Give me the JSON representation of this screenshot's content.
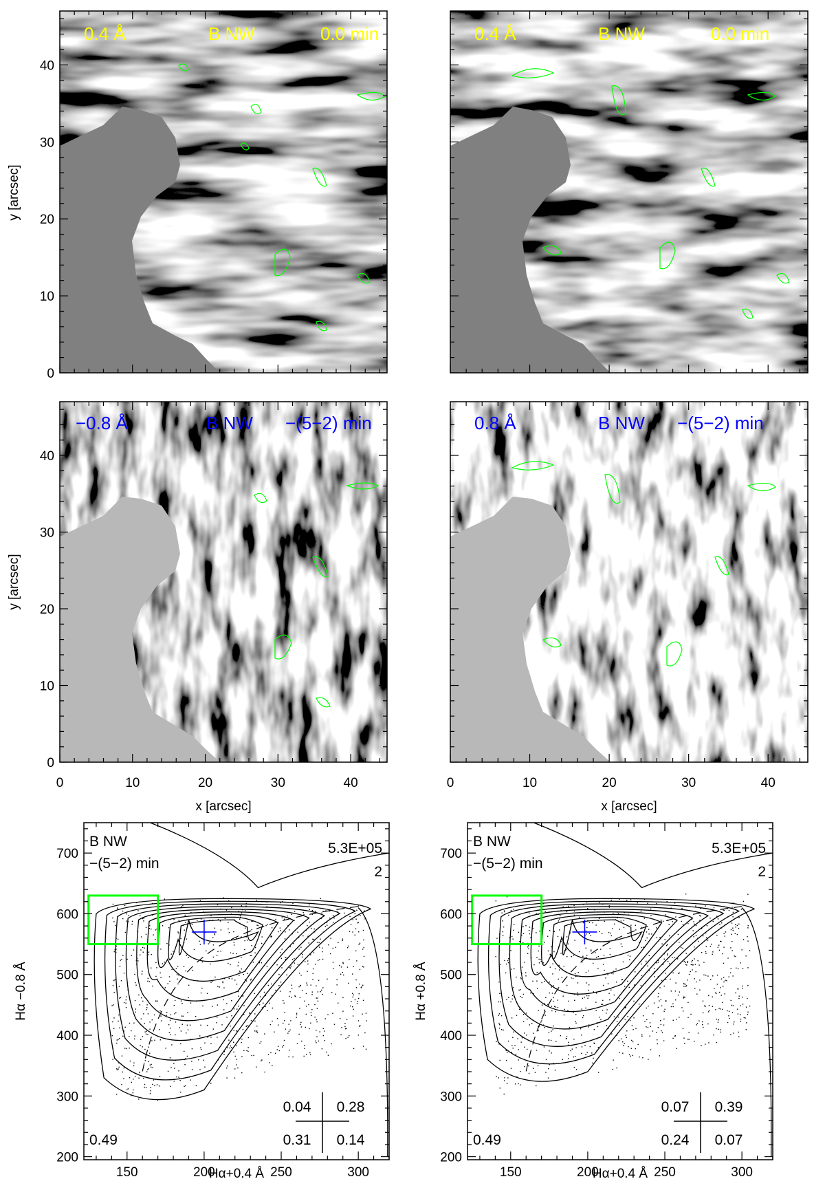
{
  "chart_data": [
    {
      "type": "heatmap",
      "panel": "a",
      "labels": {
        "wavelength": "0.4 Å",
        "region": "B  NW",
        "time": "0.0 min"
      },
      "label_color": "#ffff00",
      "colormap": "grayscale",
      "contour_colors": [
        "#00ff00",
        "#0000ff"
      ],
      "x_ticks": [
        0,
        10,
        20,
        30,
        40
      ],
      "y_ticks": [
        0,
        10,
        20,
        30,
        40
      ],
      "xlim": [
        0,
        45
      ],
      "ylim": [
        0,
        47
      ],
      "ylabel": "y  [arcsec]"
    },
    {
      "type": "heatmap",
      "panel": "b",
      "labels": {
        "wavelength": "0.4 Å",
        "region": "B  NW",
        "time": "0.0 min"
      },
      "label_color": "#ffff00",
      "colormap": "grayscale",
      "contour_colors": [
        "#00ff00",
        "#0000ff"
      ],
      "x_ticks": [
        0,
        10,
        20,
        30,
        40
      ],
      "y_ticks": [
        0,
        10,
        20,
        30,
        40
      ],
      "xlim": [
        0,
        45
      ],
      "ylim": [
        0,
        47
      ]
    },
    {
      "type": "heatmap",
      "panel": "c",
      "labels": {
        "wavelength": "−0.8 Å",
        "region": "B  NW",
        "time": "−(5−2) min"
      },
      "label_color": "#0000ff",
      "colormap": "grayscale",
      "contour_colors": [
        "#00ff00"
      ],
      "x_ticks": [
        0,
        10,
        20,
        30,
        40
      ],
      "y_ticks": [
        0,
        10,
        20,
        30,
        40
      ],
      "xlim": [
        0,
        45
      ],
      "ylim": [
        0,
        47
      ],
      "xlabel": "x  [arcsec]",
      "ylabel": "y  [arcsec]"
    },
    {
      "type": "heatmap",
      "panel": "d",
      "labels": {
        "wavelength": "0.8 Å",
        "region": "B  NW",
        "time": "−(5−2) min"
      },
      "label_color": "#0000ff",
      "colormap": "grayscale",
      "contour_colors": [
        "#00ff00"
      ],
      "x_ticks": [
        0,
        10,
        20,
        30,
        40
      ],
      "y_ticks": [
        0,
        10,
        20,
        30,
        40
      ],
      "xlim": [
        0,
        45
      ],
      "ylim": [
        0,
        47
      ],
      "xlabel": "x  [arcsec]"
    },
    {
      "type": "scatter",
      "panel": "e",
      "top_left": [
        "B  NW",
        "−(5−2) min"
      ],
      "count": "5.3E+05",
      "level": "2",
      "bottom_left": "0.49",
      "quadrants": {
        "ul": "0.04",
        "ur": "0.28",
        "ll": "0.31",
        "lr": "0.14"
      },
      "xlabel": "Hα+0.4 Å",
      "ylabel": "Hα −0.8 Å",
      "xlim": [
        122,
        320
      ],
      "ylim": [
        195,
        750
      ],
      "x_ticks": [
        150,
        200,
        250,
        300
      ],
      "y_ticks": [
        200,
        300,
        400,
        500,
        600,
        700
      ],
      "box": {
        "x": [
          125,
          170
        ],
        "y": [
          550,
          630
        ],
        "color": "#00ff00"
      },
      "peak": {
        "x": 200,
        "y": 570,
        "color": "#0000ff"
      },
      "contours": 9
    },
    {
      "type": "scatter",
      "panel": "f",
      "top_left": [
        "B  NW",
        "−(5−2) min"
      ],
      "count": "5.3E+05",
      "level": "2",
      "bottom_left": "0.49",
      "quadrants": {
        "ul": "0.07",
        "ur": "0.39",
        "ll": "0.24",
        "lr": "0.07"
      },
      "xlabel": "Hα+0.4 Å",
      "ylabel": "Hα +0.8 Å",
      "xlim": [
        122,
        320
      ],
      "ylim": [
        195,
        750
      ],
      "x_ticks": [
        150,
        200,
        250,
        300
      ],
      "y_ticks": [
        200,
        300,
        400,
        500,
        600,
        700
      ],
      "box": {
        "x": [
          125,
          170
        ],
        "y": [
          550,
          630
        ],
        "color": "#00ff00"
      },
      "peak": {
        "x": 198,
        "y": 570,
        "color": "#0000ff"
      },
      "contours": 9
    }
  ]
}
